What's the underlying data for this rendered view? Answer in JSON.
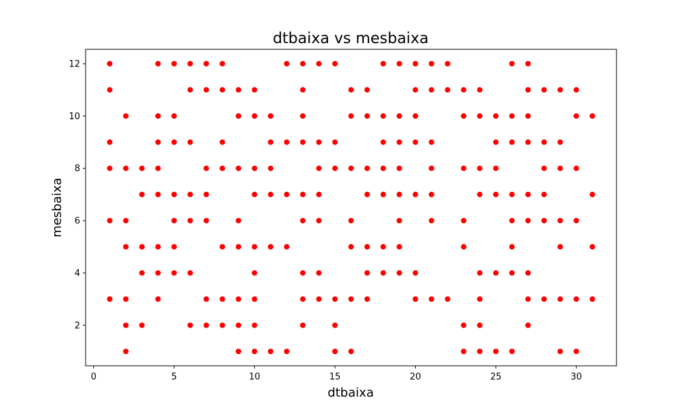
{
  "chart_data": {
    "type": "scatter",
    "title": "dtbaixa vs mesbaixa",
    "xlabel": "dtbaixa",
    "ylabel": "mesbaixa",
    "xlim": [
      -0.5,
      32.5
    ],
    "ylim": [
      0.45,
      12.55
    ],
    "xticks": [
      0,
      5,
      10,
      15,
      20,
      25,
      30
    ],
    "yticks": [
      2,
      4,
      6,
      8,
      10,
      12
    ],
    "grid": false,
    "marker_color": "#ff0000",
    "points": [
      [
        1,
        12
      ],
      [
        1,
        11
      ],
      [
        1,
        9
      ],
      [
        1,
        8
      ],
      [
        1,
        6
      ],
      [
        1,
        3
      ],
      [
        2,
        10
      ],
      [
        2,
        8
      ],
      [
        2,
        6
      ],
      [
        2,
        5
      ],
      [
        2,
        3
      ],
      [
        2,
        2
      ],
      [
        2,
        1
      ],
      [
        3,
        8
      ],
      [
        3,
        7
      ],
      [
        3,
        5
      ],
      [
        3,
        4
      ],
      [
        3,
        2
      ],
      [
        4,
        12
      ],
      [
        4,
        10
      ],
      [
        4,
        9
      ],
      [
        4,
        8
      ],
      [
        4,
        7
      ],
      [
        4,
        5
      ],
      [
        4,
        4
      ],
      [
        4,
        3
      ],
      [
        5,
        12
      ],
      [
        5,
        10
      ],
      [
        5,
        9
      ],
      [
        5,
        7
      ],
      [
        5,
        6
      ],
      [
        5,
        5
      ],
      [
        5,
        4
      ],
      [
        6,
        12
      ],
      [
        6,
        11
      ],
      [
        6,
        9
      ],
      [
        6,
        7
      ],
      [
        6,
        6
      ],
      [
        6,
        4
      ],
      [
        6,
        2
      ],
      [
        7,
        12
      ],
      [
        7,
        11
      ],
      [
        7,
        8
      ],
      [
        7,
        7
      ],
      [
        7,
        6
      ],
      [
        7,
        3
      ],
      [
        7,
        2
      ],
      [
        8,
        12
      ],
      [
        8,
        11
      ],
      [
        8,
        9
      ],
      [
        8,
        8
      ],
      [
        8,
        5
      ],
      [
        8,
        3
      ],
      [
        8,
        2
      ],
      [
        9,
        11
      ],
      [
        9,
        10
      ],
      [
        9,
        8
      ],
      [
        9,
        6
      ],
      [
        9,
        5
      ],
      [
        9,
        3
      ],
      [
        9,
        2
      ],
      [
        9,
        1
      ],
      [
        10,
        11
      ],
      [
        10,
        10
      ],
      [
        10,
        8
      ],
      [
        10,
        7
      ],
      [
        10,
        5
      ],
      [
        10,
        4
      ],
      [
        10,
        3
      ],
      [
        10,
        2
      ],
      [
        10,
        1
      ],
      [
        11,
        10
      ],
      [
        11,
        9
      ],
      [
        11,
        8
      ],
      [
        11,
        7
      ],
      [
        11,
        5
      ],
      [
        11,
        1
      ],
      [
        12,
        12
      ],
      [
        12,
        9
      ],
      [
        12,
        7
      ],
      [
        12,
        5
      ],
      [
        12,
        1
      ],
      [
        13,
        12
      ],
      [
        13,
        11
      ],
      [
        13,
        10
      ],
      [
        13,
        9
      ],
      [
        13,
        7
      ],
      [
        13,
        6
      ],
      [
        13,
        4
      ],
      [
        13,
        3
      ],
      [
        13,
        2
      ],
      [
        14,
        12
      ],
      [
        14,
        9
      ],
      [
        14,
        8
      ],
      [
        14,
        7
      ],
      [
        14,
        6
      ],
      [
        14,
        4
      ],
      [
        14,
        3
      ],
      [
        15,
        12
      ],
      [
        15,
        9
      ],
      [
        15,
        8
      ],
      [
        15,
        3
      ],
      [
        15,
        2
      ],
      [
        15,
        1
      ],
      [
        16,
        11
      ],
      [
        16,
        10
      ],
      [
        16,
        8
      ],
      [
        16,
        6
      ],
      [
        16,
        5
      ],
      [
        16,
        3
      ],
      [
        16,
        1
      ],
      [
        17,
        11
      ],
      [
        17,
        10
      ],
      [
        17,
        8
      ],
      [
        17,
        7
      ],
      [
        17,
        5
      ],
      [
        17,
        4
      ],
      [
        17,
        3
      ],
      [
        18,
        12
      ],
      [
        18,
        10
      ],
      [
        18,
        9
      ],
      [
        18,
        8
      ],
      [
        18,
        7
      ],
      [
        18,
        5
      ],
      [
        18,
        4
      ],
      [
        19,
        12
      ],
      [
        19,
        10
      ],
      [
        19,
        9
      ],
      [
        19,
        8
      ],
      [
        19,
        7
      ],
      [
        19,
        6
      ],
      [
        19,
        5
      ],
      [
        19,
        4
      ],
      [
        20,
        12
      ],
      [
        20,
        11
      ],
      [
        20,
        10
      ],
      [
        20,
        9
      ],
      [
        20,
        7
      ],
      [
        20,
        4
      ],
      [
        20,
        3
      ],
      [
        21,
        12
      ],
      [
        21,
        11
      ],
      [
        21,
        9
      ],
      [
        21,
        8
      ],
      [
        21,
        7
      ],
      [
        21,
        6
      ],
      [
        21,
        3
      ],
      [
        22,
        12
      ],
      [
        22,
        11
      ],
      [
        22,
        3
      ],
      [
        23,
        11
      ],
      [
        23,
        10
      ],
      [
        23,
        8
      ],
      [
        23,
        6
      ],
      [
        23,
        5
      ],
      [
        23,
        2
      ],
      [
        23,
        1
      ],
      [
        24,
        11
      ],
      [
        24,
        10
      ],
      [
        24,
        8
      ],
      [
        24,
        7
      ],
      [
        24,
        4
      ],
      [
        24,
        3
      ],
      [
        24,
        2
      ],
      [
        24,
        1
      ],
      [
        25,
        10
      ],
      [
        25,
        9
      ],
      [
        25,
        8
      ],
      [
        25,
        7
      ],
      [
        25,
        4
      ],
      [
        25,
        1
      ],
      [
        26,
        12
      ],
      [
        26,
        10
      ],
      [
        26,
        9
      ],
      [
        26,
        7
      ],
      [
        26,
        6
      ],
      [
        26,
        5
      ],
      [
        26,
        4
      ],
      [
        26,
        1
      ],
      [
        27,
        12
      ],
      [
        27,
        11
      ],
      [
        27,
        10
      ],
      [
        27,
        9
      ],
      [
        27,
        7
      ],
      [
        27,
        6
      ],
      [
        27,
        4
      ],
      [
        27,
        3
      ],
      [
        27,
        2
      ],
      [
        28,
        11
      ],
      [
        28,
        9
      ],
      [
        28,
        8
      ],
      [
        28,
        7
      ],
      [
        28,
        6
      ],
      [
        28,
        3
      ],
      [
        29,
        11
      ],
      [
        29,
        9
      ],
      [
        29,
        8
      ],
      [
        29,
        6
      ],
      [
        29,
        5
      ],
      [
        29,
        3
      ],
      [
        29,
        1
      ],
      [
        30,
        11
      ],
      [
        30,
        10
      ],
      [
        30,
        8
      ],
      [
        30,
        6
      ],
      [
        30,
        3
      ],
      [
        30,
        1
      ],
      [
        31,
        10
      ],
      [
        31,
        7
      ],
      [
        31,
        5
      ],
      [
        31,
        3
      ]
    ]
  }
}
